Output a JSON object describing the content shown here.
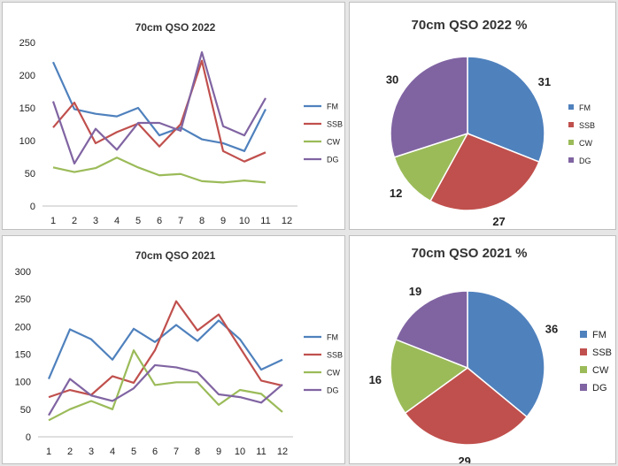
{
  "colors": {
    "FM": "#4f81bd",
    "SSB": "#c0504d",
    "CW": "#9bbb59",
    "DG": "#8064a2"
  },
  "chart_data": [
    {
      "id": "line22",
      "type": "line",
      "title": "70cm QSO 2022",
      "x": [
        1,
        2,
        3,
        4,
        5,
        6,
        7,
        8,
        9,
        10,
        11,
        12
      ],
      "ylim": [
        0,
        250
      ],
      "yticks": [
        0,
        50,
        100,
        150,
        200,
        250
      ],
      "grid": false,
      "legend": "right",
      "series": [
        {
          "name": "FM",
          "values": [
            220,
            148,
            141,
            137,
            150,
            108,
            120,
            102,
            96,
            84,
            148,
            null
          ]
        },
        {
          "name": "SSB",
          "values": [
            120,
            158,
            96,
            113,
            126,
            91,
            125,
            222,
            84,
            68,
            82,
            null
          ]
        },
        {
          "name": "CW",
          "values": [
            59,
            52,
            58,
            74,
            59,
            47,
            49,
            38,
            36,
            39,
            36,
            null
          ]
        },
        {
          "name": "DG",
          "values": [
            160,
            65,
            118,
            86,
            127,
            127,
            115,
            235,
            122,
            108,
            165,
            null
          ]
        }
      ]
    },
    {
      "id": "pie22",
      "type": "pie",
      "title": "70cm QSO  2022 %",
      "legend": "right",
      "slices": [
        {
          "name": "FM",
          "value": 31
        },
        {
          "name": "SSB",
          "value": 27
        },
        {
          "name": "CW",
          "value": 12
        },
        {
          "name": "DG",
          "value": 30
        }
      ]
    },
    {
      "id": "line21",
      "type": "line",
      "title": "70cm QSO 2021",
      "x": [
        1,
        2,
        3,
        4,
        5,
        6,
        7,
        8,
        9,
        10,
        11,
        12
      ],
      "ylim": [
        0,
        300
      ],
      "yticks": [
        0,
        50,
        100,
        150,
        200,
        250,
        300
      ],
      "grid": false,
      "legend": "right",
      "series": [
        {
          "name": "FM",
          "values": [
            105,
            195,
            177,
            140,
            196,
            172,
            203,
            174,
            211,
            177,
            122,
            140
          ]
        },
        {
          "name": "SSB",
          "values": [
            72,
            85,
            76,
            110,
            98,
            157,
            246,
            193,
            222,
            162,
            102,
            93
          ]
        },
        {
          "name": "CW",
          "values": [
            30,
            50,
            65,
            50,
            157,
            94,
            99,
            99,
            58,
            85,
            78,
            45
          ]
        },
        {
          "name": "DG",
          "values": [
            39,
            105,
            75,
            65,
            88,
            130,
            126,
            117,
            77,
            72,
            62,
            95
          ]
        }
      ]
    },
    {
      "id": "pie21",
      "type": "pie",
      "title": "70cm QSO  2021 %",
      "legend": "right",
      "slices": [
        {
          "name": "FM",
          "value": 36
        },
        {
          "name": "SSB",
          "value": 29
        },
        {
          "name": "CW",
          "value": 16
        },
        {
          "name": "DG",
          "value": 19
        }
      ]
    }
  ]
}
